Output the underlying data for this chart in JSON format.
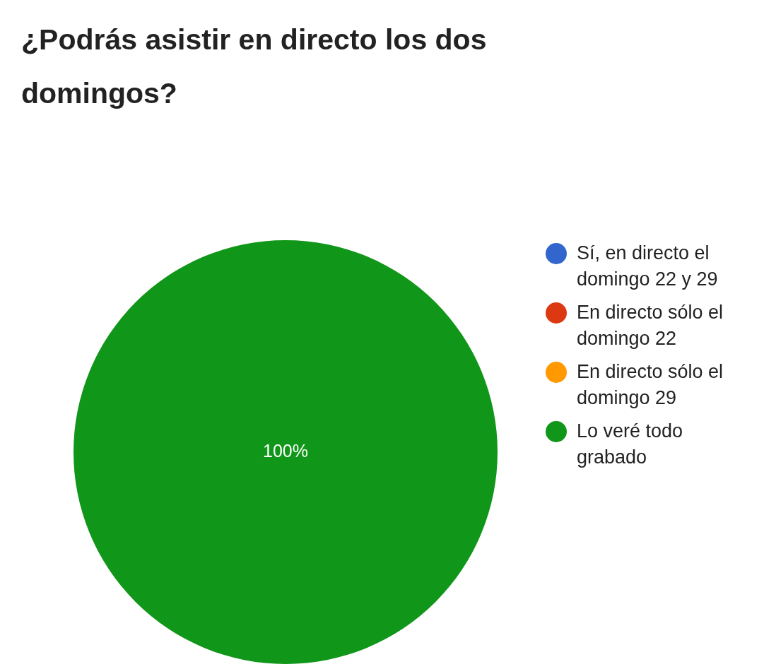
{
  "chart_data": {
    "type": "pie",
    "title": "¿Podrás asistir en directo los dos domingos?",
    "categories": [
      "Sí, en directo el domingo 22 y 29",
      "En directo sólo el domingo 22",
      "En directo sólo el domingo 29",
      "Lo veré todo grabado"
    ],
    "values": [
      0,
      0,
      0,
      100
    ],
    "colors": [
      "#3366cc",
      "#dc3912",
      "#ff9900",
      "#109618"
    ],
    "value_labels": [
      null,
      null,
      null,
      "100%"
    ],
    "legend": "right"
  }
}
